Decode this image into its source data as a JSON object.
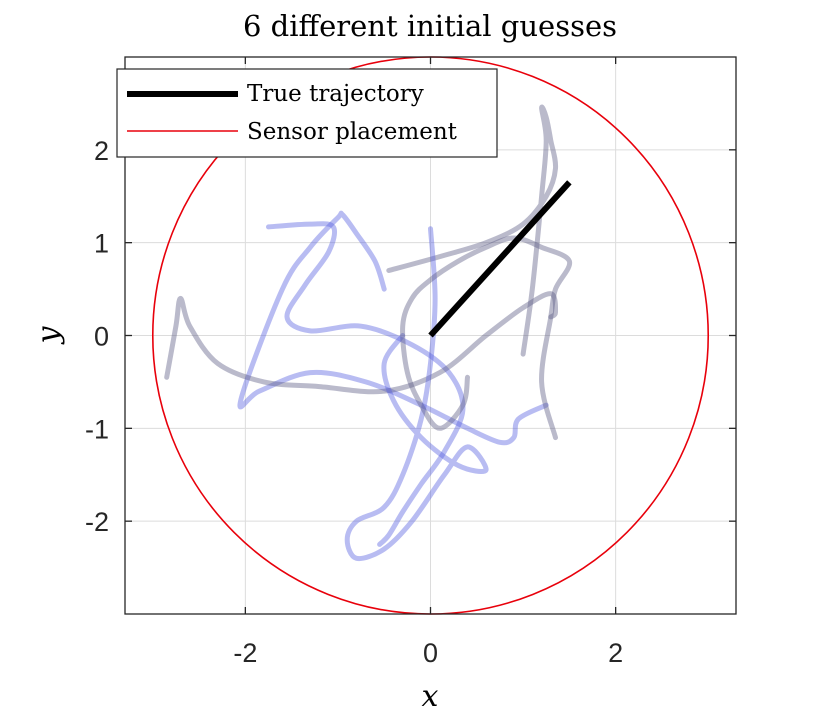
{
  "chart_data": {
    "type": "line",
    "title": "6 different initial guesses",
    "xlabel": "x",
    "ylabel": "y",
    "xlim": [
      -3.3,
      3.3
    ],
    "ylim": [
      -3.0,
      3.0
    ],
    "xticks": [
      -2,
      0,
      2
    ],
    "yticks": [
      -2,
      -1,
      0,
      1,
      2
    ],
    "xtick_labels": [
      "-2",
      "0",
      "2"
    ],
    "ytick_labels": [
      "-2",
      "-1",
      "0",
      "1",
      "2"
    ],
    "grid": true,
    "box": true,
    "legend": {
      "placement": "top-left",
      "entries": [
        "True trajectory",
        "Sensor placement"
      ]
    },
    "colors": {
      "true_trajectory": "#000000",
      "sensor_placement": "#e8000b",
      "guess_blue": "#5560e0",
      "guess_gray": "#5a5a82",
      "grid": "#dcdcdc",
      "axis": "#262626"
    },
    "sensor_placement": {
      "center": [
        0,
        0
      ],
      "radius": 3.0
    },
    "true_trajectory": {
      "x": [
        0.0,
        1.5
      ],
      "y": [
        0.0,
        1.65
      ]
    },
    "guesses": [
      {
        "tone": "blue",
        "x": [
          -1.75,
          -1.3,
          -1.05,
          -1.1,
          -1.35,
          -1.55,
          -1.3,
          -0.75,
          -0.2,
          0.2,
          0.35,
          0.15,
          -0.1,
          -0.3,
          -0.45,
          -0.55
        ],
        "y": [
          1.17,
          1.2,
          1.17,
          0.9,
          0.55,
          0.2,
          0.05,
          0.1,
          -0.1,
          -0.4,
          -0.8,
          -1.25,
          -1.6,
          -1.9,
          -2.15,
          -2.25
        ]
      },
      {
        "tone": "blue",
        "x": [
          -0.5,
          -0.6,
          -0.8,
          -0.95,
          -1.0,
          -1.3,
          -1.6,
          -2.05,
          -1.85,
          -1.3,
          -0.7,
          -0.1,
          0.4,
          0.75,
          0.9,
          0.95,
          1.25
        ],
        "y": [
          0.5,
          0.8,
          1.1,
          1.3,
          1.27,
          0.95,
          0.5,
          -0.7,
          -0.6,
          -0.4,
          -0.5,
          -0.75,
          -1.0,
          -1.15,
          -1.1,
          -0.9,
          -0.75
        ]
      },
      {
        "tone": "gray",
        "x": [
          -2.85,
          -2.75,
          -2.7,
          -2.6,
          -2.3,
          -1.8,
          -1.2,
          -0.5,
          0.1,
          0.6,
          1.0,
          1.3,
          1.35,
          1.3
        ],
        "y": [
          -0.45,
          0.1,
          0.4,
          0.1,
          -0.3,
          -0.5,
          -0.55,
          -0.6,
          -0.4,
          0.0,
          0.3,
          0.45,
          0.25,
          0.2
        ]
      },
      {
        "tone": "gray",
        "x": [
          -0.45,
          0.1,
          0.6,
          1.0,
          1.25,
          1.35,
          1.3,
          1.25,
          1.2,
          1.25,
          1.2,
          1.1,
          1.0
        ],
        "y": [
          0.7,
          0.85,
          1.0,
          1.2,
          1.5,
          1.8,
          2.1,
          2.35,
          2.45,
          2.1,
          1.5,
          0.5,
          -0.2
        ]
      },
      {
        "tone": "blue",
        "x": [
          0.0,
          0.05,
          0.0,
          -0.1,
          -0.3,
          -0.5,
          -0.8,
          -0.9,
          -0.8,
          -0.5,
          -0.2,
          0.15,
          0.4,
          0.6,
          0.3,
          -0.1,
          -0.4,
          -0.5,
          -0.3
        ],
        "y": [
          1.15,
          0.4,
          -0.3,
          -0.9,
          -1.5,
          -1.85,
          -2.0,
          -2.2,
          -2.4,
          -2.3,
          -2.0,
          -1.5,
          -1.2,
          -1.45,
          -1.4,
          -1.1,
          -0.7,
          -0.3,
          0.0
        ]
      },
      {
        "tone": "gray",
        "x": [
          0.4,
          0.35,
          0.1,
          -0.1,
          -0.25,
          -0.3,
          -0.2,
          0.0,
          0.3,
          0.6,
          0.9,
          1.2,
          1.5,
          1.35,
          1.3,
          1.2,
          1.35
        ],
        "y": [
          -0.45,
          -0.75,
          -1.0,
          -0.75,
          -0.4,
          0.1,
          0.4,
          0.6,
          0.8,
          0.95,
          1.05,
          0.95,
          0.8,
          0.5,
          0.2,
          -0.5,
          -1.1
        ]
      }
    ]
  }
}
